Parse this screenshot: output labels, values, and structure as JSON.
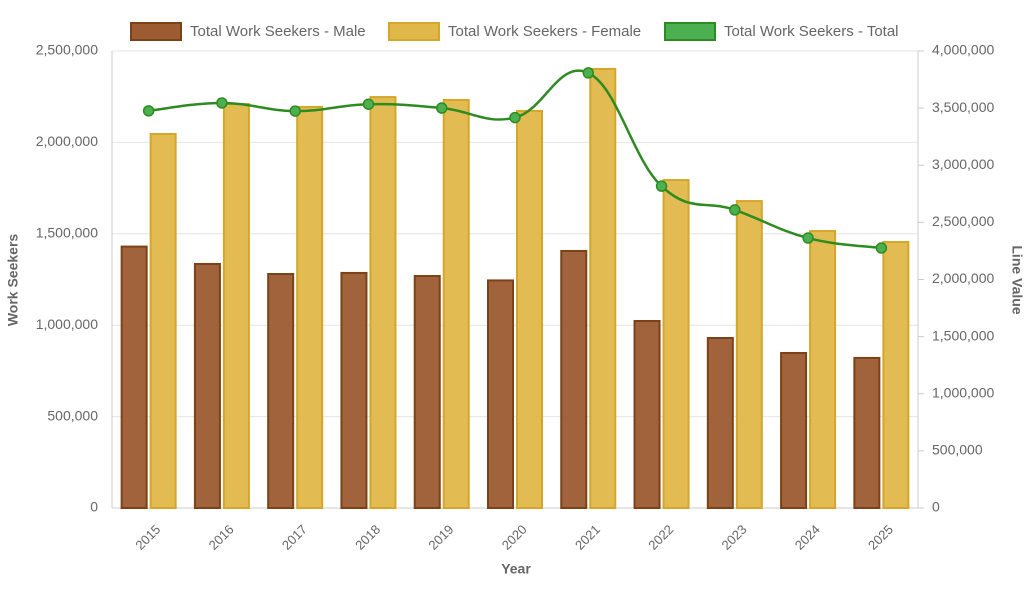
{
  "chart_data": {
    "type": "bar-line",
    "x_label": "Year",
    "y_label": "Work Seekers",
    "y2_label": "Line Value",
    "categories": [
      "2015",
      "2016",
      "2017",
      "2018",
      "2019",
      "2020",
      "2021",
      "2022",
      "2023",
      "2024",
      "2025"
    ],
    "series": [
      {
        "name": "Total Work Seekers - Male",
        "type": "bar",
        "color": "#9c5b30",
        "border": "#7a4216",
        "values": [
          1430000,
          1335000,
          1280000,
          1286000,
          1269000,
          1245000,
          1406000,
          1023000,
          930000,
          848000,
          821000
        ]
      },
      {
        "name": "Total Work Seekers - Female",
        "type": "bar",
        "color": "#e0b84a",
        "border": "#d4a62a",
        "values": [
          2046000,
          2210000,
          2194000,
          2248000,
          2232000,
          2172000,
          2402000,
          1794000,
          1679000,
          1515000,
          1455000
        ]
      },
      {
        "name": "Total Work Seekers - Total",
        "type": "line",
        "axis": "y2",
        "color": "#2e8b22",
        "fill": "#4caf50",
        "values": [
          3476000,
          3545000,
          3474000,
          3534000,
          3501000,
          3417000,
          3808000,
          2817000,
          2609000,
          2363000,
          2276000
        ]
      }
    ],
    "ylim": [
      0,
      2500000
    ],
    "yticks": [
      0,
      {
        "value": 500000,
        "label": "500,000"
      },
      {
        "value": 1000000,
        "label": "1,000,000"
      },
      {
        "value": 1500000,
        "label": "1,500,000"
      },
      {
        "value": 2000000,
        "label": "2,000,000"
      },
      {
        "value": 2500000,
        "label": "2,500,000"
      }
    ],
    "y2lim": [
      0,
      4000000
    ],
    "y2ticks": [
      0,
      {
        "value": 500000,
        "label": "500,000"
      },
      {
        "value": 1000000,
        "label": "1,000,000"
      },
      {
        "value": 1500000,
        "label": "1,500,000"
      },
      {
        "value": 2000000,
        "label": "2,000,000"
      },
      {
        "value": 2500000,
        "label": "2,500,000"
      },
      {
        "value": 3000000,
        "label": "3,000,000"
      },
      {
        "value": 3500000,
        "label": "3,500,000"
      },
      {
        "value": 4000000,
        "label": "4,000,000"
      }
    ],
    "grid": true
  }
}
